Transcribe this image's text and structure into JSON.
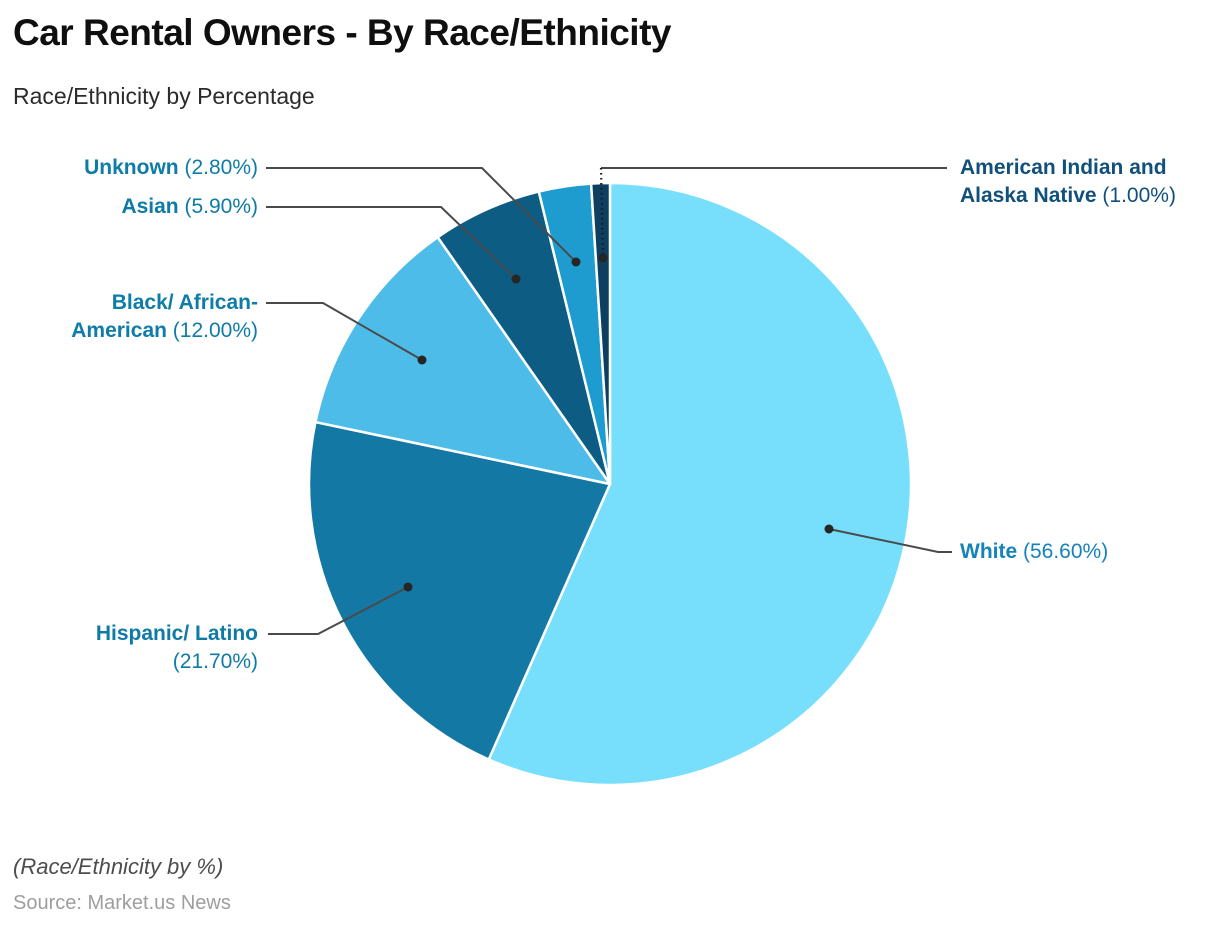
{
  "header": {
    "title": "Car Rental Owners - By Race/Ethnicity",
    "subtitle": "Race/Ethnicity by Percentage"
  },
  "footer": {
    "note": "(Race/Ethnicity by %)",
    "source": "Source: Market.us News"
  },
  "chart_data": {
    "type": "pie",
    "title": "Car Rental Owners - By Race/Ethnicity",
    "unit": "percent",
    "start_angle_deg": 0,
    "direction": "clockwise",
    "legend_position": "callout-labels",
    "slices": [
      {
        "label": "White",
        "value": 56.6,
        "pct_label": " (56.60%)",
        "color": "#77dffc",
        "label_color": "#1682ba"
      },
      {
        "label": "Hispanic/ Latino",
        "value": 21.7,
        "pct_label": " (21.70%)",
        "color": "#1478a4",
        "label_color": "#0f7aa6"
      },
      {
        "label": "Black/ African-American",
        "value": 12.0,
        "pct_label": " (12.00%)",
        "color": "#4ebce9",
        "label_color": "#0e7ca9"
      },
      {
        "label": "Asian",
        "value": 5.9,
        "pct_label": " (5.90%)",
        "color": "#0d5c84",
        "label_color": "#0e7aa6"
      },
      {
        "label": "Unknown",
        "value": 2.8,
        "pct_label": " (2.80%)",
        "color": "#1e9ccf",
        "label_color": "#0e7ca8"
      },
      {
        "label": "American Indian and Alaska Native",
        "value": 1.0,
        "pct_label": " (1.00%)",
        "color": "#0e3f61",
        "label_color": "#11507b"
      }
    ],
    "leader_line_color": "#4a4a4a",
    "dot_color": "#262626",
    "slice_border_color": "#ffffff"
  }
}
